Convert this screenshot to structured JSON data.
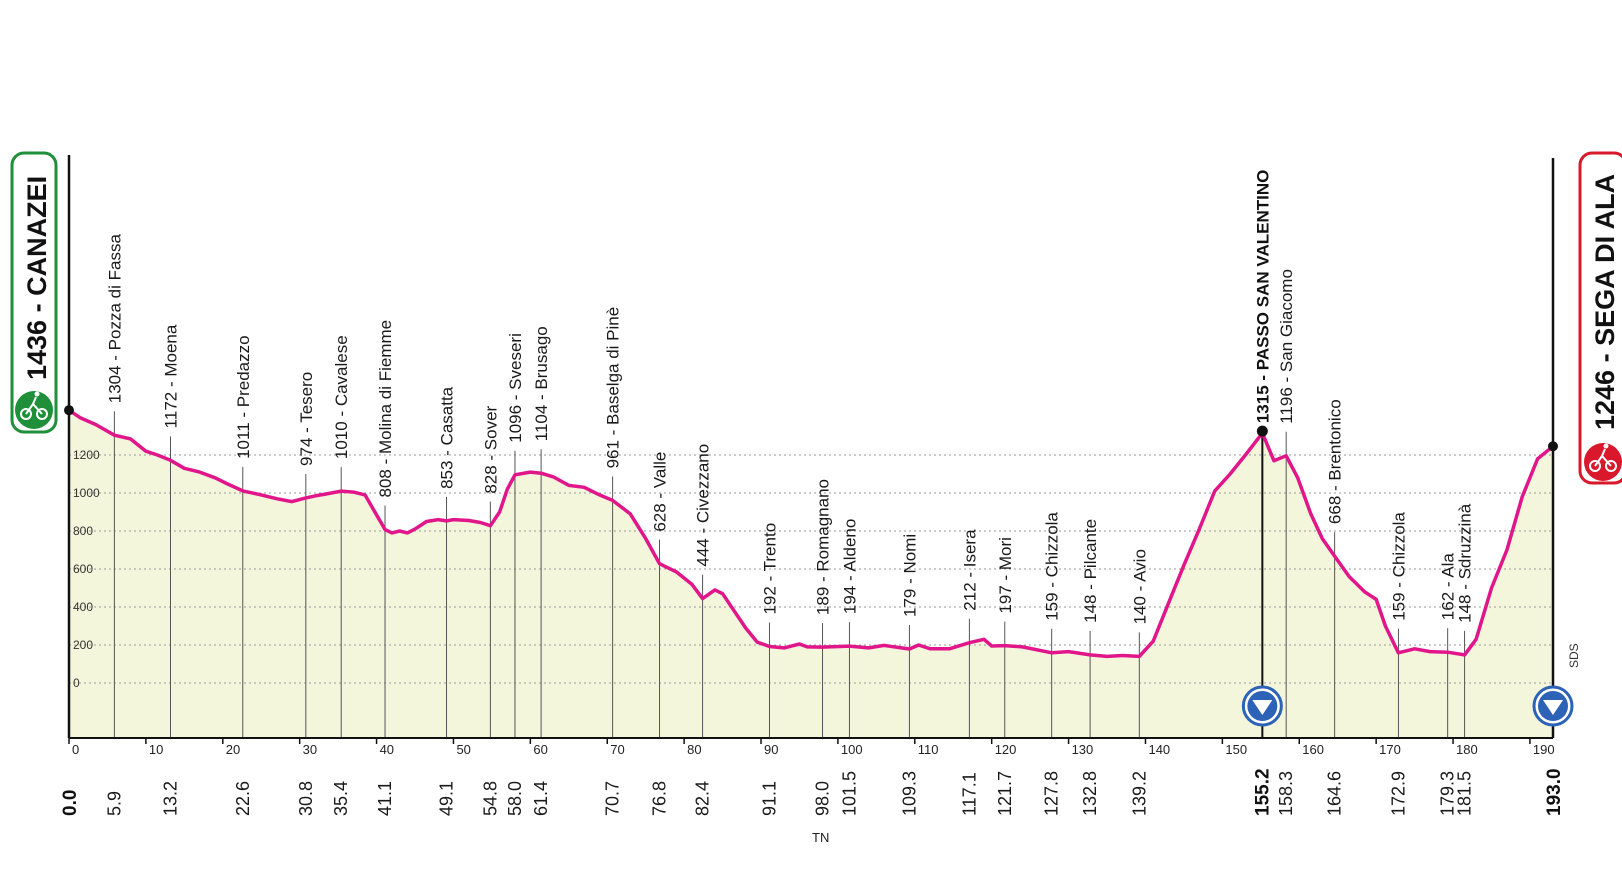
{
  "chart_data": {
    "type": "area",
    "start": {
      "altitude": "1436",
      "name": "CANAZEI",
      "km": "0.0"
    },
    "finish": {
      "altitude": "1246",
      "name": "SEGA DI ALA",
      "km": "193.0"
    },
    "xlim": [
      0,
      193
    ],
    "ylim": [
      -200,
      1450
    ],
    "x_ticks": [
      0,
      10,
      20,
      30,
      40,
      50,
      60,
      70,
      80,
      90,
      100,
      110,
      120,
      130,
      140,
      150,
      160,
      170,
      180,
      190
    ],
    "y_ticks": [
      0,
      200,
      400,
      600,
      800,
      1000,
      1200
    ],
    "grid": "dotted horizontal",
    "profile": [
      {
        "km": 0.0,
        "alt": 1436
      },
      {
        "km": 1.5,
        "alt": 1395
      },
      {
        "km": 3.5,
        "alt": 1360
      },
      {
        "km": 5.9,
        "alt": 1304
      },
      {
        "km": 8,
        "alt": 1285
      },
      {
        "km": 10,
        "alt": 1220
      },
      {
        "km": 11.5,
        "alt": 1200
      },
      {
        "km": 13.2,
        "alt": 1172
      },
      {
        "km": 15,
        "alt": 1130
      },
      {
        "km": 17,
        "alt": 1110
      },
      {
        "km": 19,
        "alt": 1080
      },
      {
        "km": 20.5,
        "alt": 1050
      },
      {
        "km": 22.6,
        "alt": 1011
      },
      {
        "km": 25,
        "alt": 990
      },
      {
        "km": 27,
        "alt": 970
      },
      {
        "km": 29,
        "alt": 955
      },
      {
        "km": 30.8,
        "alt": 974
      },
      {
        "km": 32,
        "alt": 985
      },
      {
        "km": 33.5,
        "alt": 995
      },
      {
        "km": 35.4,
        "alt": 1010
      },
      {
        "km": 37,
        "alt": 1005
      },
      {
        "km": 38.5,
        "alt": 990
      },
      {
        "km": 39.5,
        "alt": 920
      },
      {
        "km": 40.5,
        "alt": 850
      },
      {
        "km": 41.1,
        "alt": 808
      },
      {
        "km": 42,
        "alt": 790
      },
      {
        "km": 43,
        "alt": 800
      },
      {
        "km": 44,
        "alt": 790
      },
      {
        "km": 45,
        "alt": 810
      },
      {
        "km": 46.5,
        "alt": 850
      },
      {
        "km": 48,
        "alt": 860
      },
      {
        "km": 49.1,
        "alt": 853
      },
      {
        "km": 50,
        "alt": 860
      },
      {
        "km": 52,
        "alt": 855
      },
      {
        "km": 53.5,
        "alt": 845
      },
      {
        "km": 54.8,
        "alt": 828
      },
      {
        "km": 56,
        "alt": 900
      },
      {
        "km": 57,
        "alt": 1020
      },
      {
        "km": 58,
        "alt": 1096
      },
      {
        "km": 60,
        "alt": 1110
      },
      {
        "km": 61.4,
        "alt": 1104
      },
      {
        "km": 63,
        "alt": 1085
      },
      {
        "km": 65,
        "alt": 1040
      },
      {
        "km": 67,
        "alt": 1030
      },
      {
        "km": 69,
        "alt": 990
      },
      {
        "km": 70.7,
        "alt": 961
      },
      {
        "km": 73,
        "alt": 890
      },
      {
        "km": 75,
        "alt": 760
      },
      {
        "km": 76.8,
        "alt": 628
      },
      {
        "km": 79,
        "alt": 585
      },
      {
        "km": 81,
        "alt": 520
      },
      {
        "km": 82.4,
        "alt": 444
      },
      {
        "km": 84,
        "alt": 490
      },
      {
        "km": 85,
        "alt": 470
      },
      {
        "km": 86.5,
        "alt": 380
      },
      {
        "km": 88,
        "alt": 290
      },
      {
        "km": 89.5,
        "alt": 215
      },
      {
        "km": 91.1,
        "alt": 192
      },
      {
        "km": 93,
        "alt": 185
      },
      {
        "km": 95,
        "alt": 205
      },
      {
        "km": 96,
        "alt": 190
      },
      {
        "km": 98.0,
        "alt": 189
      },
      {
        "km": 101.5,
        "alt": 194
      },
      {
        "km": 104,
        "alt": 185
      },
      {
        "km": 106,
        "alt": 198
      },
      {
        "km": 109.3,
        "alt": 179
      },
      {
        "km": 110.5,
        "alt": 200
      },
      {
        "km": 112,
        "alt": 180
      },
      {
        "km": 114.5,
        "alt": 180
      },
      {
        "km": 117.1,
        "alt": 212
      },
      {
        "km": 119,
        "alt": 230
      },
      {
        "km": 120,
        "alt": 195
      },
      {
        "km": 121.7,
        "alt": 197
      },
      {
        "km": 124,
        "alt": 190
      },
      {
        "km": 127.8,
        "alt": 159
      },
      {
        "km": 130,
        "alt": 165
      },
      {
        "km": 132.8,
        "alt": 148
      },
      {
        "km": 135,
        "alt": 140
      },
      {
        "km": 137,
        "alt": 145
      },
      {
        "km": 139.2,
        "alt": 140
      },
      {
        "km": 141,
        "alt": 220
      },
      {
        "km": 143,
        "alt": 420
      },
      {
        "km": 145,
        "alt": 620
      },
      {
        "km": 147,
        "alt": 810
      },
      {
        "km": 149,
        "alt": 1010
      },
      {
        "km": 151,
        "alt": 1100
      },
      {
        "km": 153,
        "alt": 1200
      },
      {
        "km": 155.2,
        "alt": 1315
      },
      {
        "km": 156.7,
        "alt": 1170
      },
      {
        "km": 158.3,
        "alt": 1196
      },
      {
        "km": 159.8,
        "alt": 1080
      },
      {
        "km": 161.5,
        "alt": 890
      },
      {
        "km": 163,
        "alt": 760
      },
      {
        "km": 164.6,
        "alt": 668
      },
      {
        "km": 166.5,
        "alt": 560
      },
      {
        "km": 168.5,
        "alt": 480
      },
      {
        "km": 170,
        "alt": 440
      },
      {
        "km": 171.2,
        "alt": 300
      },
      {
        "km": 172.9,
        "alt": 159
      },
      {
        "km": 175,
        "alt": 180
      },
      {
        "km": 177,
        "alt": 165
      },
      {
        "km": 179.3,
        "alt": 162
      },
      {
        "km": 181.5,
        "alt": 148
      },
      {
        "km": 183,
        "alt": 230
      },
      {
        "km": 185,
        "alt": 500
      },
      {
        "km": 187,
        "alt": 700
      },
      {
        "km": 189,
        "alt": 980
      },
      {
        "km": 191,
        "alt": 1180
      },
      {
        "km": 193.0,
        "alt": 1246
      }
    ],
    "places": [
      {
        "km": 5.9,
        "label": "1304 - Pozza di Fassa",
        "km_label": "5.9"
      },
      {
        "km": 13.2,
        "label": "1172 - Moena",
        "km_label": "13.2"
      },
      {
        "km": 22.6,
        "label": "1011 - Predazzo",
        "km_label": "22.6"
      },
      {
        "km": 30.8,
        "label": "974 - Tesero",
        "km_label": "30.8"
      },
      {
        "km": 35.4,
        "label": "1010 - Cavalese",
        "km_label": "35.4"
      },
      {
        "km": 41.1,
        "label": "808 - Molina di Fiemme",
        "km_label": "41.1"
      },
      {
        "km": 49.1,
        "label": "853 - Casatta",
        "km_label": "49.1"
      },
      {
        "km": 54.8,
        "label": "828 - Sover",
        "km_label": "54.8"
      },
      {
        "km": 58.0,
        "label": "1096 - Sveseri",
        "km_label": "58.0"
      },
      {
        "km": 61.4,
        "label": "1104 - Brusago",
        "km_label": "61.4"
      },
      {
        "km": 70.7,
        "label": "961 - Baselga di Pinè",
        "km_label": "70.7"
      },
      {
        "km": 76.8,
        "label": "628 - Valle",
        "km_label": "76.8"
      },
      {
        "km": 82.4,
        "label": "444 - Civezzano",
        "km_label": "82.4"
      },
      {
        "km": 91.1,
        "label": "192 - Trento",
        "km_label": "91.1"
      },
      {
        "km": 98.0,
        "label": "189 - Romagnano",
        "km_label": "98.0"
      },
      {
        "km": 101.5,
        "label": "194 - Aldeno",
        "km_label": "101.5"
      },
      {
        "km": 109.3,
        "label": "179 - Nomi",
        "km_label": "109.3"
      },
      {
        "km": 117.1,
        "label": "212 - Isera",
        "km_label": "117.1"
      },
      {
        "km": 121.7,
        "label": "197 - Mori",
        "km_label": "121.7"
      },
      {
        "km": 127.8,
        "label": "159 - Chizzola",
        "km_label": "127.8"
      },
      {
        "km": 132.8,
        "label": "148 - Pilcante",
        "km_label": "132.8"
      },
      {
        "km": 139.2,
        "label": "140 - Avio",
        "km_label": "139.2"
      },
      {
        "km": 155.2,
        "label": "1315 - PASSO SAN VALENTINO",
        "km_label": "155.2",
        "gpm": true
      },
      {
        "km": 158.3,
        "label": "1196 - San Giacomo",
        "km_label": "158.3"
      },
      {
        "km": 164.6,
        "label": "668 - Brentonico",
        "km_label": "164.6"
      },
      {
        "km": 172.9,
        "label": "159 - Chizzola",
        "km_label": "172.9"
      },
      {
        "km": 179.3,
        "label": "162 - Ala",
        "km_label": "179.3"
      },
      {
        "km": 181.5,
        "label": "148 - Sdruzzinà",
        "km_label": "181.5"
      }
    ],
    "markers": [
      {
        "km": 155.2,
        "type": "down-triangle-badge"
      },
      {
        "km": 193.0,
        "type": "down-triangle-badge"
      }
    ],
    "footer_labels": {
      "tn": "TN",
      "sds": "SDS"
    },
    "colors": {
      "profile_line": "#e0168a",
      "fill": "#f4f6dc",
      "start_badge": "#1f8f3a",
      "finish_badge": "#d9182b",
      "marker": "#2d63b7"
    }
  }
}
